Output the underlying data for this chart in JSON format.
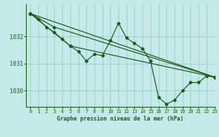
{
  "title": "Graphe pression niveau de la mer (hPa)",
  "xlim": [
    -0.5,
    23
  ],
  "ylim": [
    1029.4,
    1033.2
  ],
  "yticks": [
    1030,
    1031,
    1032
  ],
  "xticks": [
    0,
    1,
    2,
    3,
    4,
    5,
    6,
    7,
    8,
    9,
    10,
    11,
    12,
    13,
    14,
    15,
    16,
    17,
    18,
    19,
    20,
    21,
    22,
    23
  ],
  "background_color": "#c5e8e8",
  "grid_color": "#9ecece",
  "line_color": "#1a5c1a",
  "detailed_x": [
    0,
    1,
    2,
    3,
    4,
    5,
    6,
    7,
    8,
    9,
    10,
    11,
    12,
    13,
    14,
    15,
    16,
    17,
    18,
    19,
    20,
    21,
    22,
    23
  ],
  "detailed_y": [
    1032.85,
    1032.65,
    1032.35,
    1032.15,
    1031.9,
    1031.65,
    1031.45,
    1031.1,
    1031.35,
    1031.3,
    1031.85,
    1032.5,
    1031.95,
    1031.75,
    1031.55,
    1031.1,
    1029.75,
    1029.5,
    1029.65,
    1030.0,
    1030.3,
    1030.3,
    1030.55,
    1030.5
  ],
  "trend_lines": [
    {
      "x": [
        0,
        23
      ],
      "y": [
        1032.85,
        1030.5
      ]
    },
    {
      "x": [
        0,
        23
      ],
      "y": [
        1032.85,
        1030.5
      ]
    },
    {
      "x": [
        0,
        23
      ],
      "y": [
        1032.85,
        1030.5
      ]
    }
  ],
  "diagonal_lines": [
    {
      "x": [
        0,
        11,
        23
      ],
      "y": [
        1032.85,
        1032.5,
        1030.5
      ]
    },
    {
      "x": [
        0,
        11,
        23
      ],
      "y": [
        1032.85,
        1032.5,
        1030.5
      ]
    },
    {
      "x": [
        0,
        11,
        23
      ],
      "y": [
        1032.85,
        1032.5,
        1030.5
      ]
    }
  ]
}
